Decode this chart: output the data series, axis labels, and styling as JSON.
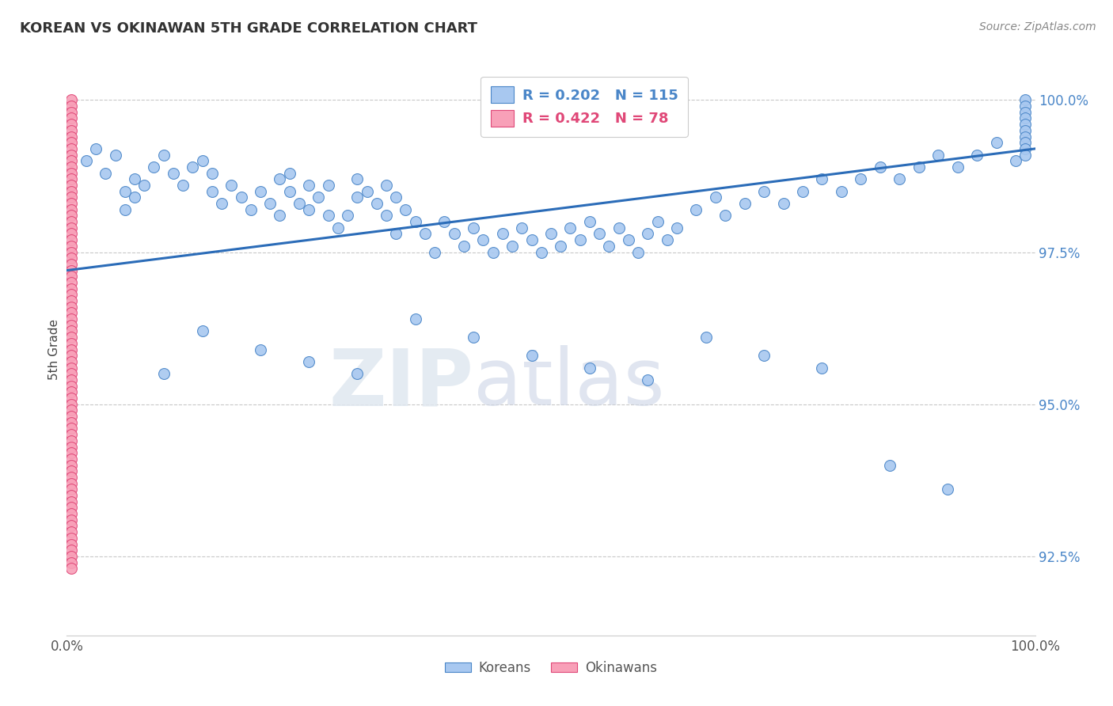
{
  "title": "KOREAN VS OKINAWAN 5TH GRADE CORRELATION CHART",
  "source_text": "Source: ZipAtlas.com",
  "ylabel": "5th Grade",
  "ytick_labels": [
    "92.5%",
    "95.0%",
    "97.5%",
    "100.0%"
  ],
  "ytick_values": [
    0.925,
    0.95,
    0.975,
    1.0
  ],
  "xlim": [
    0.0,
    1.0
  ],
  "ylim": [
    0.912,
    1.006
  ],
  "korean_color": "#a8c8f0",
  "korean_edge_color": "#4a86c8",
  "okinawan_color": "#f8a0b8",
  "okinawan_edge_color": "#e04878",
  "legend_korean_R": "0.202",
  "legend_korean_N": "115",
  "legend_okinawan_R": "0.422",
  "legend_okinawan_N": "78",
  "regression_line_x0": 0.0,
  "regression_line_y0": 0.972,
  "regression_line_x1": 1.0,
  "regression_line_y1": 0.992,
  "regression_color": "#2b6cb8",
  "regression_lw": 2.2,
  "marker_size": 100,
  "background_color": "#ffffff",
  "grid_color": "#c8c8c8",
  "watermark_zip": "ZIP",
  "watermark_atlas": "atlas",
  "koreans_x": [
    0.02,
    0.03,
    0.04,
    0.05,
    0.06,
    0.06,
    0.07,
    0.07,
    0.08,
    0.09,
    0.1,
    0.11,
    0.12,
    0.13,
    0.14,
    0.15,
    0.15,
    0.16,
    0.17,
    0.18,
    0.19,
    0.2,
    0.21,
    0.22,
    0.22,
    0.23,
    0.23,
    0.24,
    0.25,
    0.25,
    0.26,
    0.27,
    0.27,
    0.28,
    0.29,
    0.3,
    0.3,
    0.31,
    0.32,
    0.33,
    0.33,
    0.34,
    0.34,
    0.35,
    0.36,
    0.37,
    0.38,
    0.39,
    0.4,
    0.41,
    0.42,
    0.43,
    0.44,
    0.45,
    0.46,
    0.47,
    0.48,
    0.49,
    0.5,
    0.51,
    0.52,
    0.53,
    0.54,
    0.55,
    0.56,
    0.57,
    0.58,
    0.59,
    0.6,
    0.61,
    0.62,
    0.63,
    0.65,
    0.67,
    0.68,
    0.7,
    0.72,
    0.74,
    0.76,
    0.78,
    0.8,
    0.82,
    0.84,
    0.86,
    0.88,
    0.9,
    0.92,
    0.94,
    0.96,
    0.98,
    0.99,
    0.99,
    0.99,
    0.99,
    0.99,
    0.99,
    0.99,
    0.99,
    0.99,
    0.99,
    0.1,
    0.14,
    0.2,
    0.25,
    0.3,
    0.36,
    0.42,
    0.48,
    0.54,
    0.6,
    0.66,
    0.72,
    0.78,
    0.85,
    0.91
  ],
  "koreans_y": [
    0.99,
    0.992,
    0.988,
    0.991,
    0.985,
    0.982,
    0.984,
    0.987,
    0.986,
    0.989,
    0.991,
    0.988,
    0.986,
    0.989,
    0.99,
    0.988,
    0.985,
    0.983,
    0.986,
    0.984,
    0.982,
    0.985,
    0.983,
    0.981,
    0.987,
    0.985,
    0.988,
    0.983,
    0.986,
    0.982,
    0.984,
    0.981,
    0.986,
    0.979,
    0.981,
    0.984,
    0.987,
    0.985,
    0.983,
    0.981,
    0.986,
    0.984,
    0.978,
    0.982,
    0.98,
    0.978,
    0.975,
    0.98,
    0.978,
    0.976,
    0.979,
    0.977,
    0.975,
    0.978,
    0.976,
    0.979,
    0.977,
    0.975,
    0.978,
    0.976,
    0.979,
    0.977,
    0.98,
    0.978,
    0.976,
    0.979,
    0.977,
    0.975,
    0.978,
    0.98,
    0.977,
    0.979,
    0.982,
    0.984,
    0.981,
    0.983,
    0.985,
    0.983,
    0.985,
    0.987,
    0.985,
    0.987,
    0.989,
    0.987,
    0.989,
    0.991,
    0.989,
    0.991,
    0.993,
    0.99,
    1.0,
    0.999,
    0.998,
    0.997,
    0.996,
    0.995,
    0.994,
    0.993,
    0.992,
    0.991,
    0.955,
    0.962,
    0.959,
    0.957,
    0.955,
    0.964,
    0.961,
    0.958,
    0.956,
    0.954,
    0.961,
    0.958,
    0.956,
    0.94,
    0.936
  ],
  "okinawans_x": [
    0.005,
    0.005,
    0.005,
    0.005,
    0.005,
    0.005,
    0.005,
    0.005,
    0.005,
    0.005,
    0.005,
    0.005,
    0.005,
    0.005,
    0.005,
    0.005,
    0.005,
    0.005,
    0.005,
    0.005,
    0.005,
    0.005,
    0.005,
    0.005,
    0.005,
    0.005,
    0.005,
    0.005,
    0.005,
    0.005,
    0.005,
    0.005,
    0.005,
    0.005,
    0.005,
    0.005,
    0.005,
    0.005,
    0.005,
    0.005,
    0.005,
    0.005,
    0.005,
    0.005,
    0.005,
    0.005,
    0.005,
    0.005,
    0.005,
    0.005,
    0.005,
    0.005,
    0.005,
    0.005,
    0.005,
    0.005,
    0.005,
    0.005,
    0.005,
    0.005,
    0.005,
    0.005,
    0.005,
    0.005,
    0.005,
    0.005,
    0.005,
    0.005,
    0.005,
    0.005,
    0.005,
    0.005,
    0.005,
    0.005,
    0.005,
    0.005,
    0.005,
    0.005
  ],
  "okinawans_y": [
    1.0,
    0.999,
    0.998,
    0.997,
    0.996,
    0.995,
    0.994,
    0.993,
    0.992,
    0.991,
    0.99,
    0.989,
    0.988,
    0.987,
    0.986,
    0.985,
    0.984,
    0.983,
    0.982,
    0.981,
    0.98,
    0.979,
    0.978,
    0.977,
    0.976,
    0.975,
    0.974,
    0.973,
    0.972,
    0.971,
    0.97,
    0.969,
    0.968,
    0.967,
    0.966,
    0.965,
    0.964,
    0.963,
    0.962,
    0.961,
    0.96,
    0.959,
    0.958,
    0.957,
    0.956,
    0.955,
    0.954,
    0.953,
    0.952,
    0.951,
    0.95,
    0.949,
    0.948,
    0.947,
    0.946,
    0.945,
    0.944,
    0.943,
    0.942,
    0.941,
    0.94,
    0.939,
    0.938,
    0.937,
    0.936,
    0.935,
    0.934,
    0.933,
    0.932,
    0.931,
    0.93,
    0.929,
    0.928,
    0.927,
    0.926,
    0.925,
    0.924,
    0.923
  ]
}
